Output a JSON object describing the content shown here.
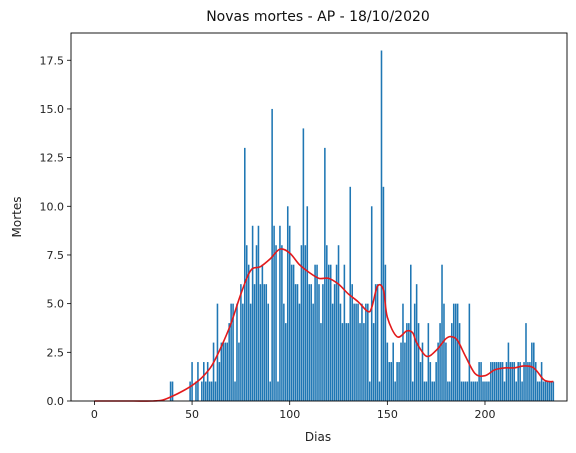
{
  "chart_data": {
    "type": "bar",
    "title": "Novas mortes - AP - 18/10/2020",
    "xlabel": "Dias",
    "ylabel": "Mortes",
    "xlim": [
      -12,
      242
    ],
    "ylim": [
      0,
      18.9
    ],
    "xticks": [
      0,
      50,
      100,
      150,
      200
    ],
    "xtick_labels": [
      "0",
      "50",
      "100",
      "150",
      "200"
    ],
    "yticks": [
      0,
      2.5,
      5,
      7.5,
      10,
      12.5,
      15,
      17.5
    ],
    "ytick_labels": [
      "0.0",
      "2.5",
      "5.0",
      "7.5",
      "10.0",
      "12.5",
      "15.0",
      "17.5"
    ],
    "grid": false,
    "legend": "none",
    "bar_color": "#1f77b4",
    "line_color": "#e31a1c",
    "series": [
      {
        "type": "bar",
        "x": [
          0,
          1,
          2,
          3,
          4,
          5,
          6,
          7,
          8,
          9,
          10,
          11,
          12,
          13,
          14,
          15,
          16,
          17,
          18,
          19,
          20,
          21,
          22,
          23,
          24,
          25,
          26,
          27,
          28,
          29,
          30,
          31,
          32,
          33,
          34,
          35,
          36,
          37,
          38,
          39,
          40,
          41,
          42,
          43,
          44,
          45,
          46,
          47,
          48,
          49,
          50,
          51,
          52,
          53,
          54,
          55,
          56,
          57,
          58,
          59,
          60,
          61,
          62,
          63,
          64,
          65,
          66,
          67,
          68,
          69,
          70,
          71,
          72,
          73,
          74,
          75,
          76,
          77,
          78,
          79,
          80,
          81,
          82,
          83,
          84,
          85,
          86,
          87,
          88,
          89,
          90,
          91,
          92,
          93,
          94,
          95,
          96,
          97,
          98,
          99,
          100,
          101,
          102,
          103,
          104,
          105,
          106,
          107,
          108,
          109,
          110,
          111,
          112,
          113,
          114,
          115,
          116,
          117,
          118,
          119,
          120,
          121,
          122,
          123,
          124,
          125,
          126,
          127,
          128,
          129,
          130,
          131,
          132,
          133,
          134,
          135,
          136,
          137,
          138,
          139,
          140,
          141,
          142,
          143,
          144,
          145,
          146,
          147,
          148,
          149,
          150,
          151,
          152,
          153,
          154,
          155,
          156,
          157,
          158,
          159,
          160,
          161,
          162,
          163,
          164,
          165,
          166,
          167,
          168,
          169,
          170,
          171,
          172,
          173,
          174,
          175,
          176,
          177,
          178,
          179,
          180,
          181,
          182,
          183,
          184,
          185,
          186,
          187,
          188,
          189,
          190,
          191,
          192,
          193,
          194,
          195,
          196,
          197,
          198,
          199,
          200,
          201,
          202,
          203,
          204,
          205,
          206,
          207,
          208,
          209,
          210,
          211,
          212,
          213,
          214,
          215,
          216,
          217,
          218,
          219,
          220,
          221,
          222,
          223,
          224,
          225,
          226,
          227,
          228,
          229,
          230,
          231,
          232,
          233,
          234,
          235
        ],
        "values": [
          0,
          0,
          0,
          0,
          0,
          0,
          0,
          0,
          0,
          0,
          0,
          0,
          0,
          0,
          0,
          0,
          0,
          0,
          0,
          0,
          0,
          0,
          0,
          0,
          0,
          0,
          0,
          0,
          0,
          0,
          0,
          0,
          0,
          0,
          0,
          0,
          0,
          0,
          0,
          1,
          1,
          0,
          0,
          0,
          0,
          0,
          0,
          0,
          0,
          1,
          2,
          0,
          1,
          2,
          0,
          1,
          2,
          1,
          2,
          1,
          1,
          3,
          1,
          5,
          2,
          3,
          3,
          3,
          3,
          4,
          5,
          5,
          1,
          5,
          3,
          6,
          5,
          13,
          8,
          7,
          5,
          9,
          6,
          8,
          9,
          6,
          7,
          6,
          6,
          5,
          1,
          15,
          9,
          8,
          1,
          9,
          8,
          5,
          4,
          10,
          9,
          7,
          7,
          6,
          6,
          5,
          8,
          14,
          8,
          10,
          6,
          6,
          5,
          7,
          7,
          6,
          4,
          6,
          13,
          8,
          7,
          7,
          5,
          6,
          7,
          8,
          5,
          4,
          7,
          4,
          4,
          11,
          6,
          5,
          5,
          5,
          4,
          5,
          4,
          5,
          5,
          1,
          10,
          4,
          6,
          6,
          1,
          18,
          11,
          7,
          3,
          2,
          2,
          3,
          1,
          2,
          2,
          3,
          5,
          3,
          4,
          4,
          7,
          1,
          5,
          6,
          4,
          2,
          3,
          1,
          1,
          4,
          2,
          1,
          1,
          2,
          3,
          4,
          7,
          5,
          3,
          1,
          1,
          4,
          5,
          5,
          5,
          4,
          1,
          1,
          1,
          1,
          5,
          1,
          1,
          1,
          1,
          2,
          2,
          1,
          1,
          1,
          1,
          2,
          2,
          2,
          2,
          2,
          2,
          2,
          1,
          2,
          3,
          2,
          2,
          2,
          1,
          2,
          2,
          1,
          2,
          4,
          2,
          2,
          3,
          3,
          2,
          1,
          1,
          2,
          1,
          1,
          1,
          1,
          1,
          1
        ]
      },
      {
        "type": "line",
        "x": [
          0,
          10,
          20,
          30,
          35,
          40,
          45,
          50,
          55,
          60,
          65,
          70,
          75,
          80,
          85,
          90,
          95,
          100,
          105,
          110,
          115,
          120,
          125,
          130,
          135,
          140,
          142,
          145,
          148,
          150,
          155,
          160,
          163,
          165,
          170,
          175,
          180,
          183,
          186,
          190,
          195,
          200,
          205,
          210,
          215,
          220,
          225,
          230,
          233,
          235
        ],
        "values": [
          0,
          0,
          0,
          0,
          0.05,
          0.25,
          0.5,
          0.8,
          1.2,
          1.8,
          2.8,
          4.0,
          5.5,
          6.7,
          6.9,
          7.3,
          7.8,
          7.6,
          7.0,
          6.6,
          6.3,
          6.3,
          6.0,
          5.5,
          5.1,
          4.6,
          4.8,
          5.9,
          5.7,
          4.3,
          3.3,
          3.6,
          3.5,
          3.0,
          2.3,
          2.6,
          3.2,
          3.3,
          3.1,
          2.3,
          1.4,
          1.3,
          1.6,
          1.7,
          1.7,
          1.8,
          1.7,
          1.1,
          1.0,
          1.0
        ]
      }
    ]
  }
}
